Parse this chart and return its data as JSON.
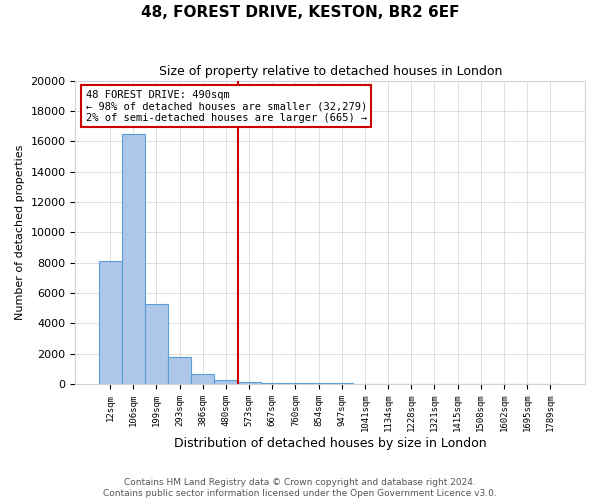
{
  "title": "48, FOREST DRIVE, KESTON, BR2 6EF",
  "subtitle": "Size of property relative to detached houses in London",
  "xlabel": "Distribution of detached houses by size in London",
  "ylabel": "Number of detached properties",
  "bar_values": [
    8100,
    16500,
    5300,
    1800,
    650,
    300,
    150,
    100,
    75,
    50,
    40,
    30,
    25,
    20,
    15,
    12,
    10,
    8,
    5,
    3
  ],
  "x_tick_labels": [
    "12sqm",
    "106sqm",
    "199sqm",
    "293sqm",
    "386sqm",
    "480sqm",
    "573sqm",
    "667sqm",
    "760sqm",
    "854sqm",
    "947sqm",
    "1041sqm",
    "1134sqm",
    "1228sqm",
    "1321sqm",
    "1415sqm",
    "1508sqm",
    "1602sqm",
    "1695sqm",
    "1789sqm"
  ],
  "bar_color": "#aec6e8",
  "bar_edge_color": "#5a9fd4",
  "vline_x": 5.5,
  "vline_color": "#cc0000",
  "annotation_text": "48 FOREST DRIVE: 490sqm\n← 98% of detached houses are smaller (32,279)\n2% of semi-detached houses are larger (665) →",
  "annotation_box_color": "#cc0000",
  "ylim": [
    0,
    20000
  ],
  "yticks": [
    0,
    2000,
    4000,
    6000,
    8000,
    10000,
    12000,
    14000,
    16000,
    18000,
    20000
  ],
  "footer_line1": "Contains HM Land Registry data © Crown copyright and database right 2024.",
  "footer_line2": "Contains public sector information licensed under the Open Government Licence v3.0."
}
